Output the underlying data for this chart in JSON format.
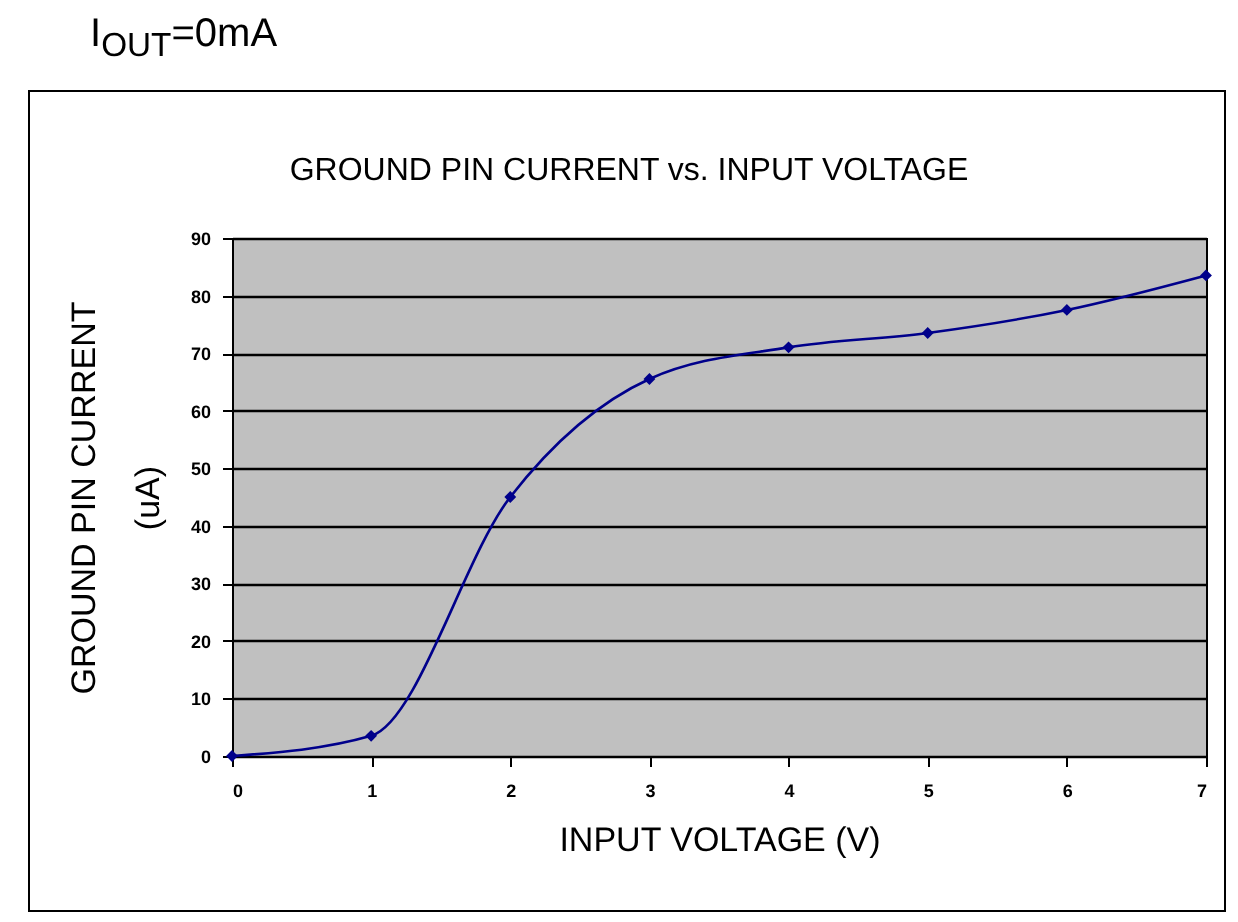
{
  "chart_data": {
    "type": "line",
    "title": "GROUND PIN CURRENT vs. INPUT VOLTAGE",
    "xlabel": "INPUT VOLTAGE (V)",
    "ylabel": "GROUND PIN CURRENT\n(uA)",
    "annotations": [
      "I$_{OUT}$=0mA"
    ],
    "x": [
      0,
      1,
      2,
      3,
      4,
      5,
      6,
      7
    ],
    "series": [
      {
        "color": "#00008b",
        "values": [
          0,
          3.5,
          45,
          65.5,
          71,
          73.5,
          77.5,
          83.5
        ]
      }
    ],
    "xlim": [
      0,
      7
    ],
    "xticks": [
      0,
      1,
      2,
      3,
      4,
      5,
      6,
      7
    ],
    "ylim": [
      0,
      90
    ],
    "yticks": [
      0,
      10,
      20,
      30,
      40,
      50,
      60,
      70,
      80,
      90
    ],
    "grid": "y",
    "legend": false,
    "marker": "diamond",
    "line_style": "solid"
  }
}
